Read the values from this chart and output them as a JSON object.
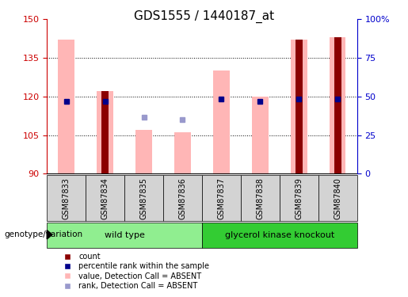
{
  "title": "GDS1555 / 1440187_at",
  "samples": [
    "GSM87833",
    "GSM87834",
    "GSM87835",
    "GSM87836",
    "GSM87837",
    "GSM87838",
    "GSM87839",
    "GSM87840"
  ],
  "ymin": 90,
  "ymax": 150,
  "yticks_left": [
    90,
    105,
    120,
    135,
    150
  ],
  "yticks_right": [
    0,
    25,
    50,
    75,
    100
  ],
  "yright_labels": [
    "0",
    "25",
    "50",
    "75",
    "100%"
  ],
  "pink_bar_tops": [
    142,
    122,
    107,
    106,
    130,
    120,
    142,
    143
  ],
  "pink_bar_bottoms": [
    90,
    90,
    90,
    90,
    90,
    90,
    90,
    90
  ],
  "dark_red_bar_tops": [
    null,
    122,
    null,
    null,
    null,
    null,
    142,
    143
  ],
  "dark_red_bar_bottoms": [
    null,
    90,
    null,
    null,
    null,
    null,
    90,
    90
  ],
  "blue_square_y": [
    118,
    118,
    null,
    null,
    119,
    118,
    119,
    119
  ],
  "light_blue_square_y": [
    null,
    null,
    112,
    111,
    null,
    null,
    null,
    null
  ],
  "groups": [
    {
      "label": "wild type",
      "start": 0,
      "end": 4,
      "color": "#90ee90"
    },
    {
      "label": "glycerol kinase knockout",
      "start": 4,
      "end": 8,
      "color": "#33cc33"
    }
  ],
  "pink_color": "#ffb6b6",
  "dark_red_color": "#8b0000",
  "blue_color": "#00008b",
  "light_blue_color": "#9999cc",
  "left_axis_color": "#cc0000",
  "right_axis_color": "#0000cc",
  "label_bg": "#d3d3d3",
  "genotype_label": "genotype/variation"
}
